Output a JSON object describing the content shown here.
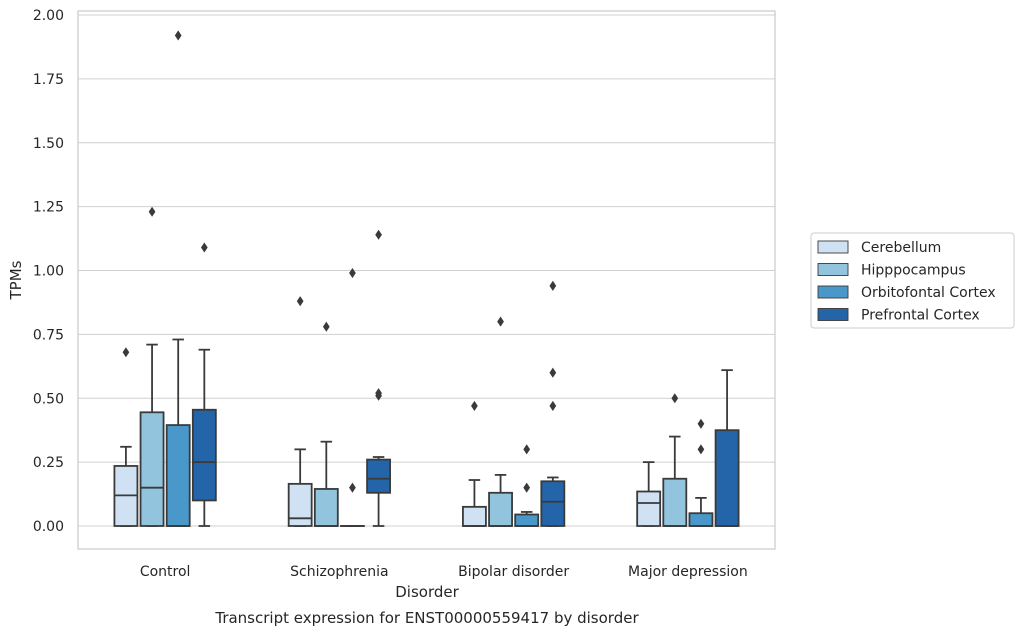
{
  "chart_data": {
    "type": "box",
    "xlabel": "Disorder",
    "ylabel": "TPMs",
    "caption": "Transcript expression for ENST00000559417 by disorder",
    "ylim": [
      -0.09,
      2.02
    ],
    "yticks": [
      0.0,
      0.25,
      0.5,
      0.75,
      1.0,
      1.25,
      1.5,
      1.75,
      2.0
    ],
    "ytick_labels": [
      "0.00",
      "0.25",
      "0.50",
      "0.75",
      "1.00",
      "1.25",
      "1.50",
      "1.75",
      "2.00"
    ],
    "grid": true,
    "legend_placement": "right",
    "categories": [
      "Control",
      "Schizophrenia",
      "Bipolar disorder",
      "Major depression"
    ],
    "colors": {
      "Cerebellum": "#cfe1f2",
      "Hipppocampus": "#93c4de",
      "Orbitofontal Cortex": "#4a98c9",
      "Prefrontal Cortex": "#2464a8",
      "grid": "#d0d0d0",
      "frame": "#cccccc",
      "edge": "#3a3a3a"
    },
    "series": [
      {
        "name": "Cerebellum",
        "boxes": [
          {
            "q1": 0.0,
            "median": 0.12,
            "q3": 0.235,
            "wlo": 0.0,
            "whi": 0.31,
            "outliers": [
              0.68
            ]
          },
          {
            "q1": 0.0,
            "median": 0.03,
            "q3": 0.165,
            "wlo": 0.0,
            "whi": 0.3,
            "outliers": [
              0.88
            ]
          },
          {
            "q1": 0.0,
            "median": 0.0,
            "q3": 0.075,
            "wlo": 0.0,
            "whi": 0.18,
            "outliers": [
              0.47
            ]
          },
          {
            "q1": 0.0,
            "median": 0.09,
            "q3": 0.135,
            "wlo": 0.0,
            "whi": 0.25,
            "outliers": []
          }
        ]
      },
      {
        "name": "Hipppocampus",
        "boxes": [
          {
            "q1": 0.0,
            "median": 0.15,
            "q3": 0.445,
            "wlo": 0.0,
            "whi": 0.71,
            "outliers": [
              1.23
            ]
          },
          {
            "q1": 0.0,
            "median": 0.0,
            "q3": 0.145,
            "wlo": 0.0,
            "whi": 0.33,
            "outliers": [
              0.78
            ]
          },
          {
            "q1": 0.0,
            "median": 0.0,
            "q3": 0.13,
            "wlo": 0.0,
            "whi": 0.2,
            "outliers": [
              0.8
            ]
          },
          {
            "q1": 0.0,
            "median": 0.0,
            "q3": 0.185,
            "wlo": 0.0,
            "whi": 0.35,
            "outliers": [
              0.5
            ]
          }
        ]
      },
      {
        "name": "Orbitofontal Cortex",
        "boxes": [
          {
            "q1": 0.0,
            "median": 0.0,
            "q3": 0.395,
            "wlo": 0.0,
            "whi": 0.73,
            "outliers": [
              1.92
            ]
          },
          {
            "q1": 0.0,
            "median": 0.0,
            "q3": 0.0,
            "wlo": 0.0,
            "whi": 0.0,
            "outliers": [
              0.15,
              0.99
            ]
          },
          {
            "q1": 0.0,
            "median": 0.0,
            "q3": 0.045,
            "wlo": 0.0,
            "whi": 0.055,
            "outliers": [
              0.15,
              0.3
            ]
          },
          {
            "q1": 0.0,
            "median": 0.0,
            "q3": 0.05,
            "wlo": 0.0,
            "whi": 0.11,
            "outliers": [
              0.3,
              0.4
            ]
          }
        ]
      },
      {
        "name": "Prefrontal Cortex",
        "boxes": [
          {
            "q1": 0.1,
            "median": 0.25,
            "q3": 0.455,
            "wlo": 0.0,
            "whi": 0.69,
            "outliers": [
              1.09
            ]
          },
          {
            "q1": 0.13,
            "median": 0.185,
            "q3": 0.26,
            "wlo": 0.0,
            "whi": 0.27,
            "outliers": [
              0.51,
              0.52,
              1.14
            ]
          },
          {
            "q1": 0.0,
            "median": 0.095,
            "q3": 0.175,
            "wlo": 0.0,
            "whi": 0.19,
            "outliers": [
              0.47,
              0.6,
              0.94
            ]
          },
          {
            "q1": 0.0,
            "median": 0.0,
            "q3": 0.375,
            "wlo": 0.0,
            "whi": 0.61,
            "outliers": []
          }
        ]
      }
    ]
  }
}
